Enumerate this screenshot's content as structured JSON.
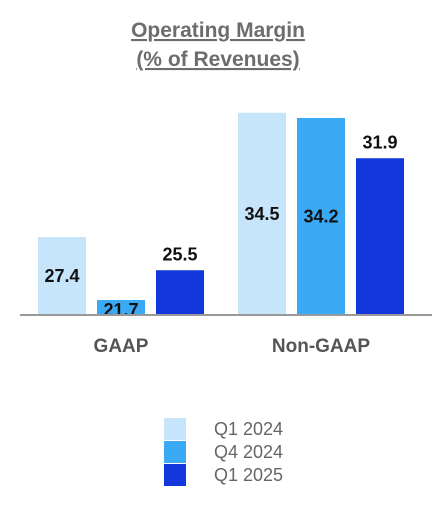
{
  "chart_data": {
    "type": "bar",
    "title_lines": [
      "Operating Margin",
      "(% of Revenues)"
    ],
    "categories": [
      "GAAP",
      "Non-GAAP"
    ],
    "series": [
      {
        "name": "Q1 2024",
        "values": [
          27.4,
          34.5
        ],
        "color": "#c6e4fa"
      },
      {
        "name": "Q4 2024",
        "values": [
          21.7,
          34.2
        ],
        "color": "#3aaaf5"
      },
      {
        "name": "Q1 2025",
        "values": [
          25.5,
          31.9
        ],
        "color": "#1237dc"
      }
    ],
    "value_label_position": [
      [
        "inside",
        "inside",
        "above"
      ],
      [
        "inside",
        "inside",
        "above"
      ]
    ],
    "xlabel": "",
    "ylabel": "",
    "grid": false,
    "legend_position": "bottom-center"
  }
}
